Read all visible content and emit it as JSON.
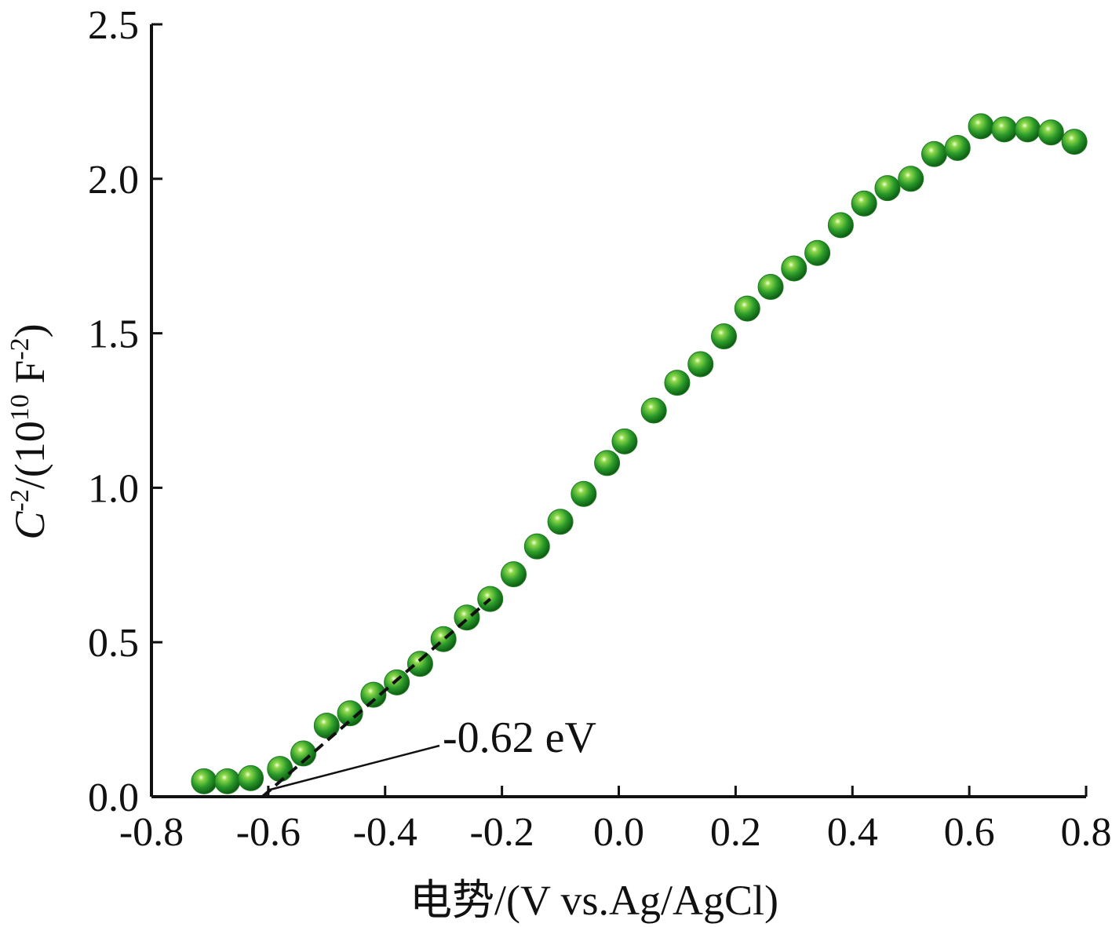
{
  "chart_data": {
    "type": "scatter",
    "xlabel": "电势/(V vs.Ag/AgCl)",
    "ylabel": {
      "base": "C",
      "base_sup": "-2",
      "mid": "/(10",
      "mid_sup": "10",
      "unit": " F",
      "unit_sup": "-2",
      "close": ")"
    },
    "xlim": [
      -0.8,
      0.8
    ],
    "ylim": [
      0,
      2.5
    ],
    "xticks": [
      "-0.8",
      "-0.6",
      "-0.4",
      "-0.2",
      "0.0",
      "0.2",
      "0.4",
      "0.6",
      "0.8"
    ],
    "yticks": [
      "0.0",
      "0.5",
      "1.0",
      "1.5",
      "2.0",
      "2.5"
    ],
    "grid": false,
    "marker_color": "#2a9a2a",
    "series": [
      {
        "x": [
          -0.71,
          -0.67,
          -0.63,
          -0.58,
          -0.54,
          -0.5,
          -0.46,
          -0.42,
          -0.38,
          -0.34,
          -0.3,
          -0.26,
          -0.22,
          -0.18,
          -0.14,
          -0.1,
          -0.06,
          -0.02,
          0.01,
          0.06,
          0.1,
          0.14,
          0.18,
          0.22,
          0.26,
          0.3,
          0.34,
          0.38,
          0.42,
          0.46,
          0.5,
          0.54,
          0.58,
          0.62,
          0.66,
          0.7,
          0.74,
          0.78
        ],
        "y": [
          0.05,
          0.05,
          0.06,
          0.09,
          0.14,
          0.23,
          0.27,
          0.33,
          0.37,
          0.43,
          0.51,
          0.58,
          0.64,
          0.72,
          0.81,
          0.89,
          0.98,
          1.08,
          1.15,
          1.25,
          1.34,
          1.4,
          1.49,
          1.58,
          1.65,
          1.71,
          1.76,
          1.85,
          1.92,
          1.97,
          2.0,
          2.08,
          2.1,
          2.17,
          2.16,
          2.16,
          2.15,
          2.12
        ]
      }
    ],
    "fit_line": {
      "x": [
        -0.61,
        -0.22
      ],
      "y": [
        0.0,
        0.64
      ]
    },
    "annotation": {
      "text": "-0.62 eV",
      "x": -0.61,
      "y": 0.0
    }
  }
}
